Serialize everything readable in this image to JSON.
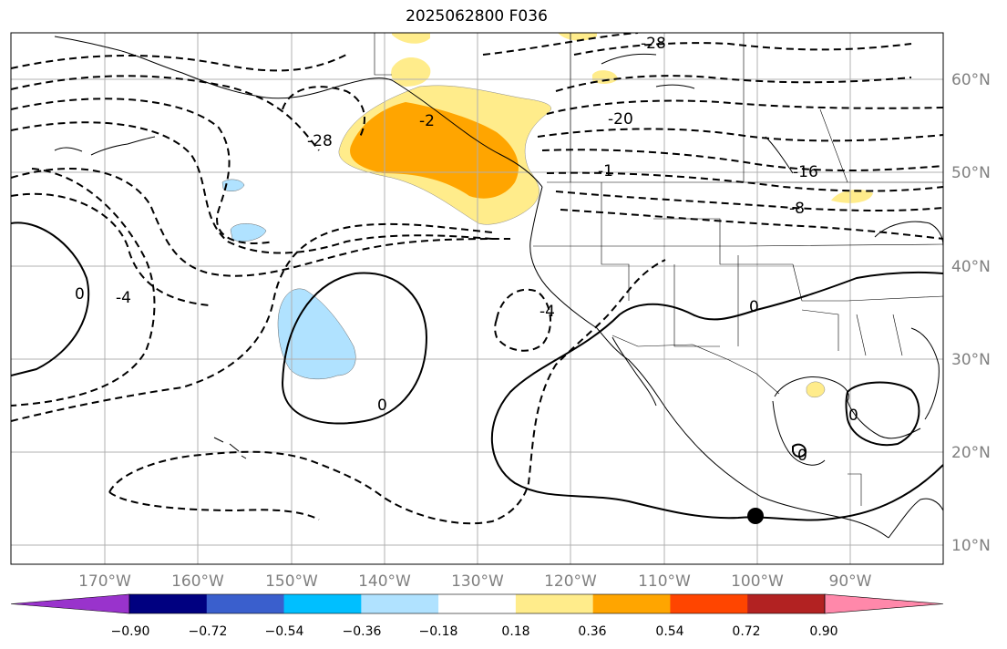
{
  "title": "2025062800 F036",
  "lon_labels": [
    "170°W",
    "160°W",
    "150°W",
    "140°W",
    "130°W",
    "120°W",
    "110°W",
    "100°W",
    "90°W"
  ],
  "lat_labels": [
    "60°N",
    "50°N",
    "40°N",
    "30°N",
    "20°N",
    "10°N"
  ],
  "colorbar": {
    "labels": [
      "−0.90",
      "−0.72",
      "−0.54",
      "−0.36",
      "−0.18",
      "0.18",
      "0.36",
      "0.54",
      "0.72",
      "0.90"
    ],
    "colors": [
      "#9933cc",
      "#000080",
      "#3a5fcd",
      "#00bfff",
      "#b0e2ff",
      "#ffffff",
      "#ffec8b",
      "#ffa500",
      "#ff4500",
      "#b22222",
      "#ff88aa"
    ]
  },
  "contour_labels": [
    "-28",
    "-28",
    "-20",
    "-16",
    "-8",
    "-4",
    "-4",
    "-2",
    "-1",
    "0",
    "0",
    "0",
    "0",
    "0"
  ],
  "colors": {
    "grid": "#b0b0b0",
    "land_outline": "#000000"
  }
}
